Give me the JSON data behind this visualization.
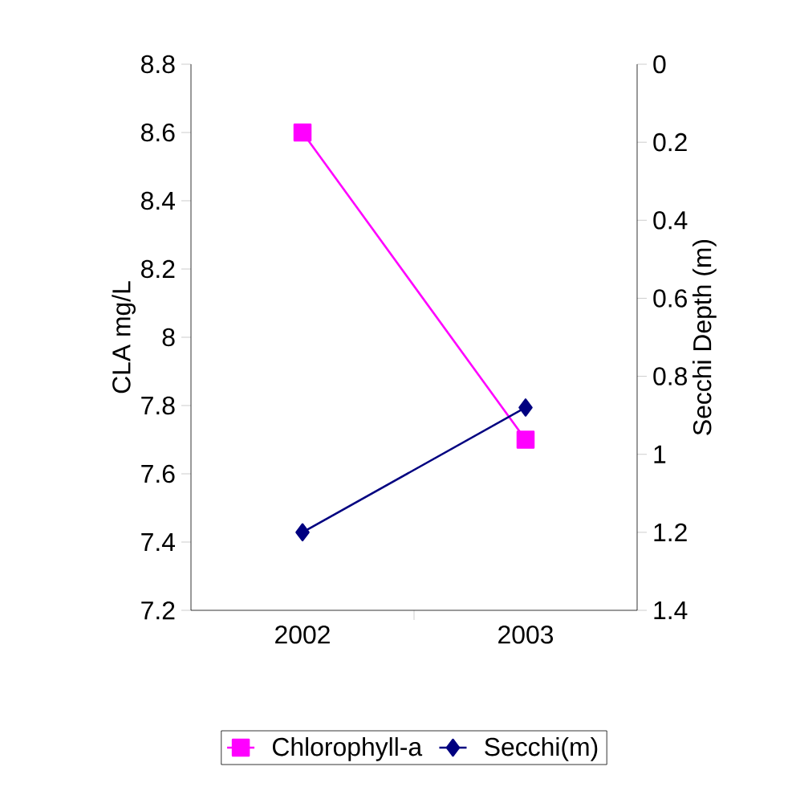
{
  "chart_data": {
    "type": "line",
    "categories": [
      "2002",
      "2003"
    ],
    "ylabel": "CLA mg/L",
    "y2label": "Secchi Depth (m)",
    "ylim": [
      7.2,
      8.8
    ],
    "yticks": [
      7.2,
      7.4,
      7.6,
      7.8,
      8,
      8.2,
      8.4,
      8.6,
      8.8
    ],
    "y2lim": [
      1.4,
      0
    ],
    "y2ticks": [
      0,
      0.2,
      0.4,
      0.6,
      0.8,
      1,
      1.2,
      1.4
    ],
    "series": [
      {
        "name": "Chlorophyll-a",
        "color": "#ff00ff",
        "values": [
          8.6,
          7.7
        ],
        "marker": "square"
      },
      {
        "name": "Secchi(m)",
        "color": "#000080",
        "values": [
          1.2,
          0.88
        ],
        "marker": "diamond",
        "axis": "y2"
      }
    ],
    "legend": "bottom",
    "grid": false
  }
}
